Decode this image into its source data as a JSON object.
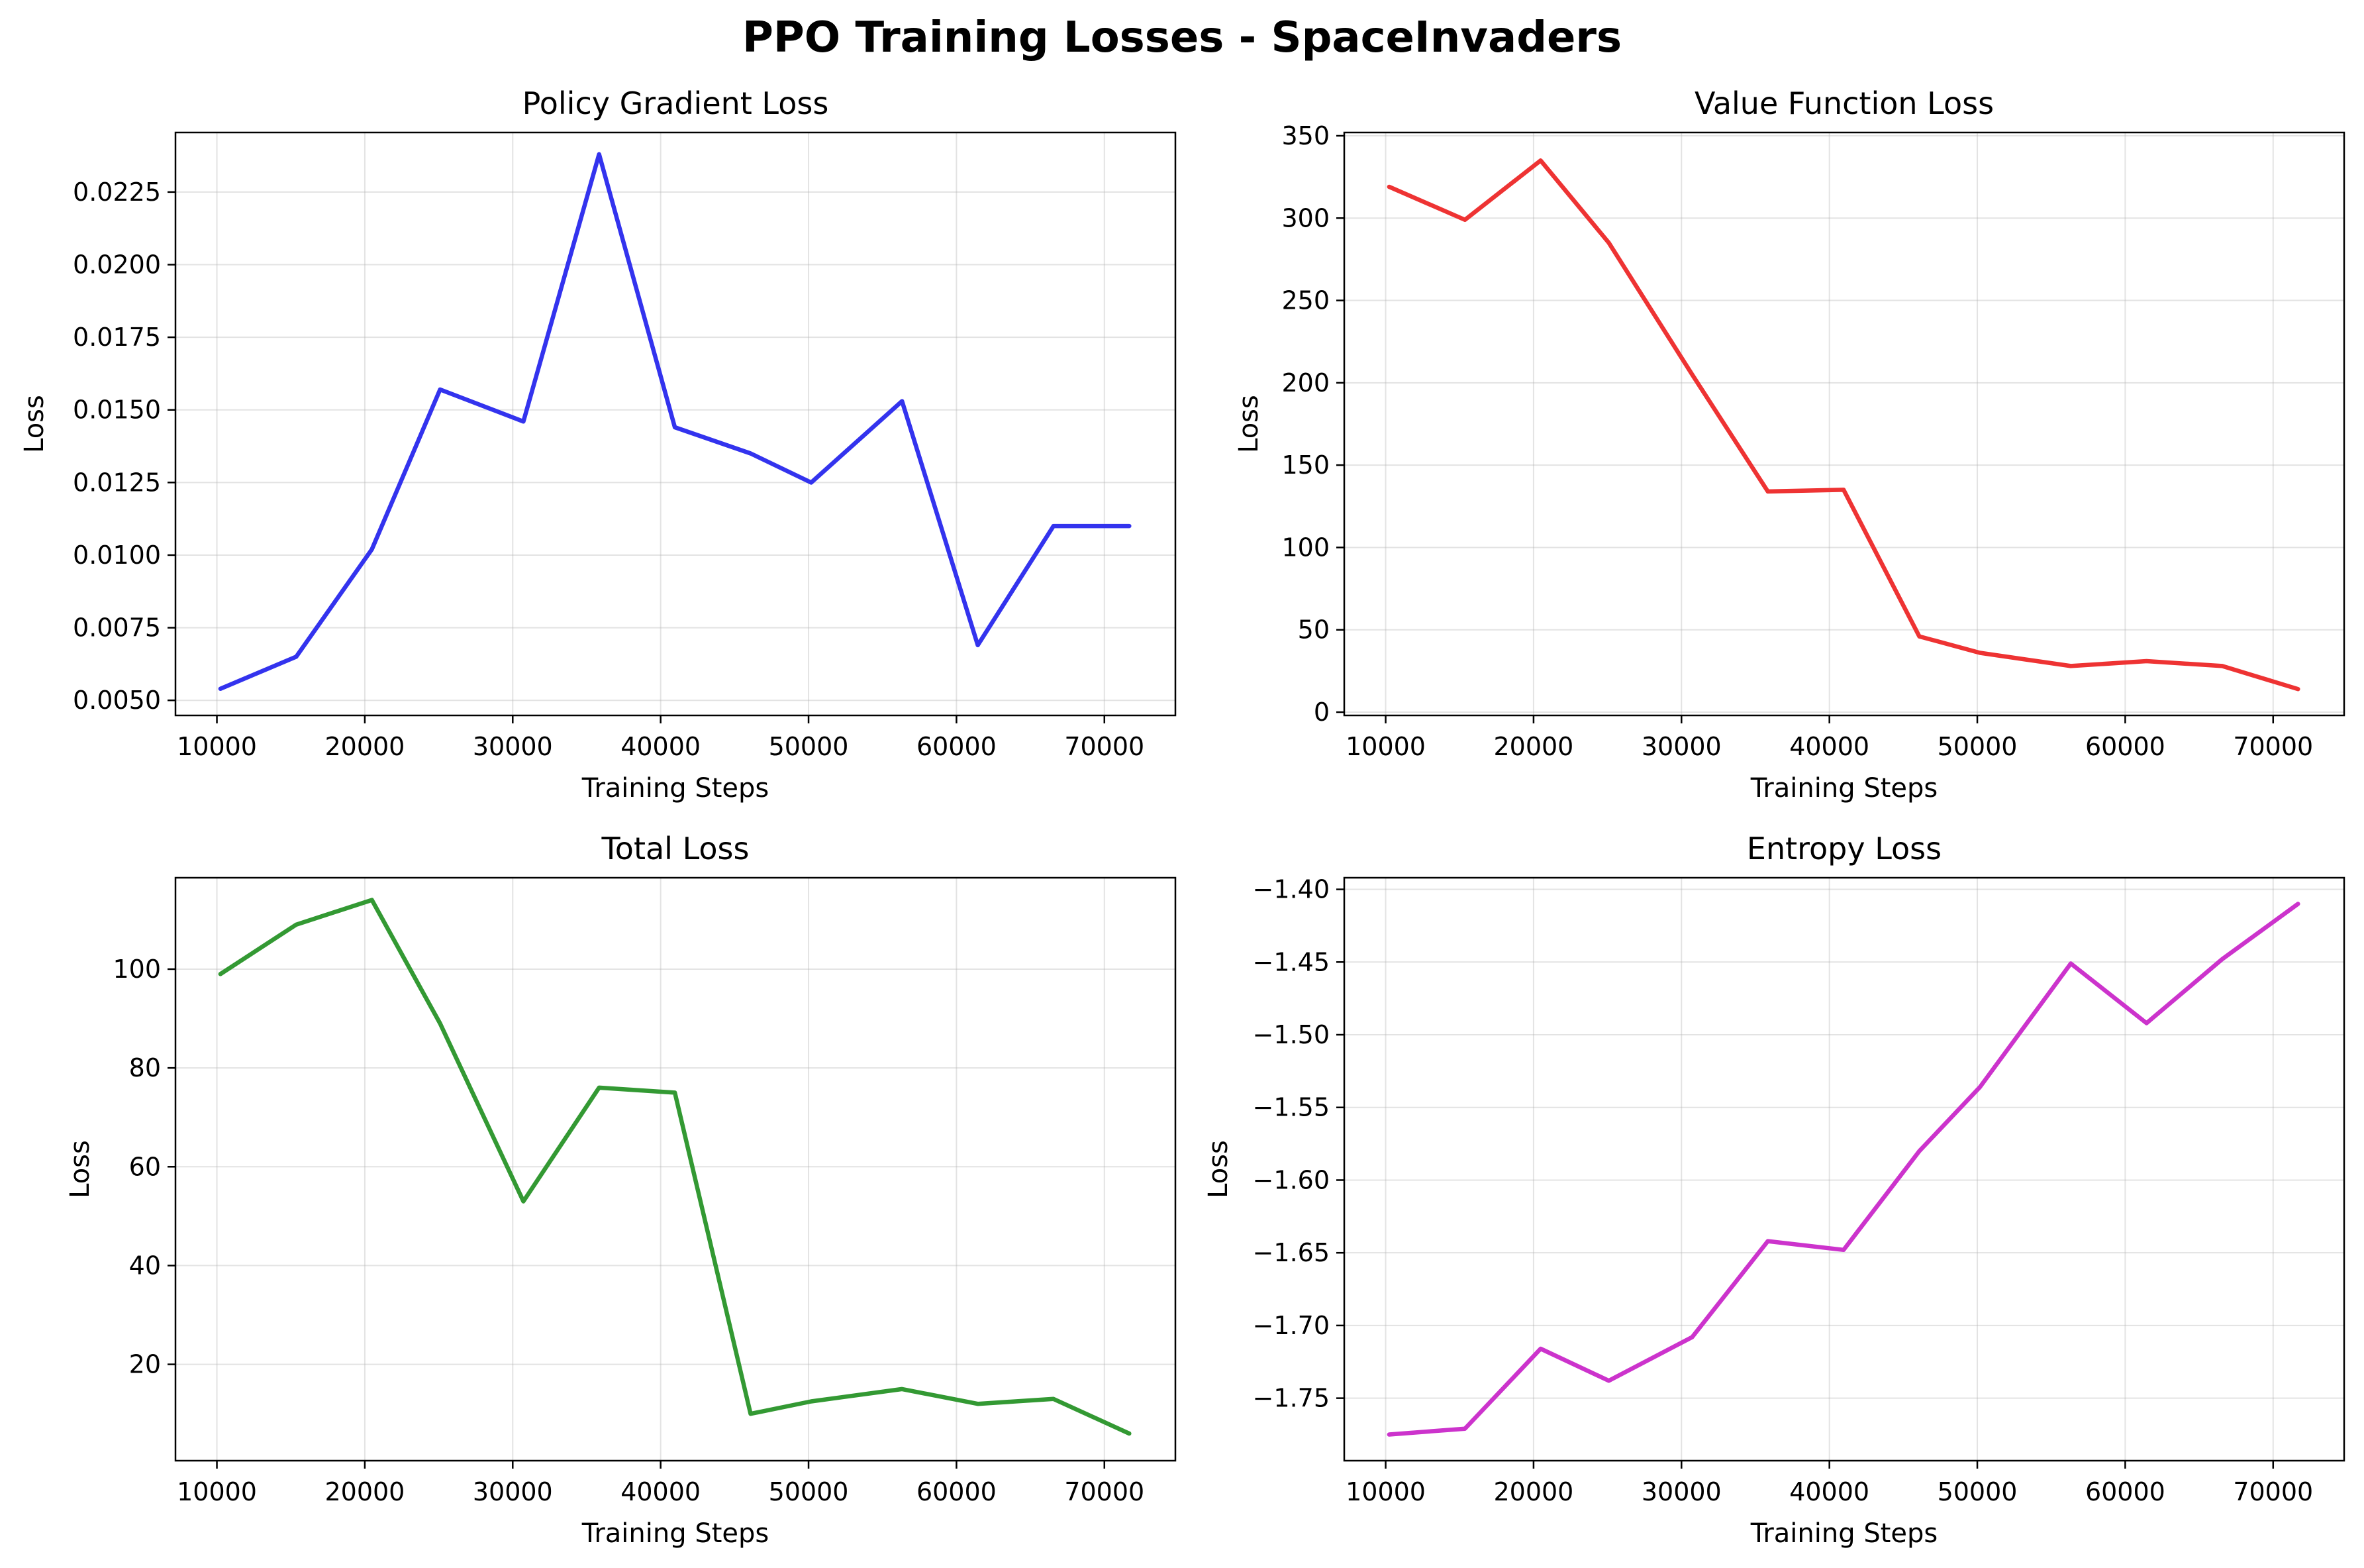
{
  "figure": {
    "suptitle": "PPO Training Losses - SpaceInvaders"
  },
  "chart_data": [
    {
      "type": "line",
      "title": "Policy Gradient Loss",
      "xlabel": "Training Steps",
      "ylabel": "Loss",
      "xlim": [
        7200,
        74800
      ],
      "ylim": [
        0.00448,
        0.02455
      ],
      "xticks": [
        10000,
        20000,
        30000,
        40000,
        50000,
        60000,
        70000
      ],
      "xtick_labels": [
        "10000",
        "20000",
        "30000",
        "40000",
        "50000",
        "60000",
        "70000"
      ],
      "yticks": [
        0.005,
        0.0075,
        0.01,
        0.0125,
        0.015,
        0.0175,
        0.02,
        0.0225
      ],
      "ytick_labels": [
        "0.0050",
        "0.0075",
        "0.0100",
        "0.0125",
        "0.0150",
        "0.0175",
        "0.0200",
        "0.0225"
      ],
      "grid": true,
      "color": "#3333ee",
      "series": [
        {
          "x": [
            10240,
            15360,
            20480,
            25088,
            30720,
            35840,
            40960,
            46080,
            50176,
            56320,
            61440,
            66560,
            71680
          ],
          "y": [
            0.0054,
            0.0065,
            0.0102,
            0.0157,
            0.0146,
            0.0238,
            0.0144,
            0.0135,
            0.0125,
            0.0153,
            0.0069,
            0.011,
            0.011
          ]
        }
      ]
    },
    {
      "type": "line",
      "title": "Value Function Loss",
      "xlabel": "Training Steps",
      "ylabel": "Loss",
      "xlim": [
        7200,
        74800
      ],
      "ylim": [
        -2,
        352
      ],
      "xticks": [
        10000,
        20000,
        30000,
        40000,
        50000,
        60000,
        70000
      ],
      "xtick_labels": [
        "10000",
        "20000",
        "30000",
        "40000",
        "50000",
        "60000",
        "70000"
      ],
      "yticks": [
        0,
        50,
        100,
        150,
        200,
        250,
        300,
        350
      ],
      "ytick_labels": [
        "0",
        "50",
        "100",
        "150",
        "200",
        "250",
        "300",
        "350"
      ],
      "grid": true,
      "color": "#ee3333",
      "series": [
        {
          "x": [
            10240,
            15360,
            20480,
            25088,
            30720,
            35840,
            40960,
            46080,
            50176,
            56320,
            61440,
            66560,
            71680
          ],
          "y": [
            319,
            299,
            335,
            285,
            205,
            134,
            135,
            46,
            36,
            28,
            31,
            28,
            14
          ]
        }
      ]
    },
    {
      "type": "line",
      "title": "Total Loss",
      "xlabel": "Training Steps",
      "ylabel": "Loss",
      "xlim": [
        7200,
        74800
      ],
      "ylim": [
        0.5,
        118.5
      ],
      "xticks": [
        10000,
        20000,
        30000,
        40000,
        50000,
        60000,
        70000
      ],
      "xtick_labels": [
        "10000",
        "20000",
        "30000",
        "40000",
        "50000",
        "60000",
        "70000"
      ],
      "yticks": [
        20,
        40,
        60,
        80,
        100
      ],
      "ytick_labels": [
        "20",
        "40",
        "60",
        "80",
        "100"
      ],
      "grid": true,
      "color": "#339933",
      "series": [
        {
          "x": [
            10240,
            15360,
            20480,
            25088,
            30720,
            35840,
            40960,
            46080,
            50176,
            56320,
            61440,
            66560,
            71680
          ],
          "y": [
            99,
            109,
            114,
            89,
            53,
            76,
            75,
            10,
            12.5,
            15,
            12,
            13,
            6
          ]
        }
      ]
    },
    {
      "type": "line",
      "title": "Entropy Loss",
      "xlabel": "Training Steps",
      "ylabel": "Loss",
      "xlim": [
        7200,
        74800
      ],
      "ylim": [
        -1.793,
        -1.392
      ],
      "xticks": [
        10000,
        20000,
        30000,
        40000,
        50000,
        60000,
        70000
      ],
      "xtick_labels": [
        "10000",
        "20000",
        "30000",
        "40000",
        "50000",
        "60000",
        "70000"
      ],
      "yticks": [
        -1.75,
        -1.7,
        -1.65,
        -1.6,
        -1.55,
        -1.5,
        -1.45,
        -1.4
      ],
      "ytick_labels": [
        "−1.75",
        "−1.70",
        "−1.65",
        "−1.60",
        "−1.55",
        "−1.50",
        "−1.45",
        "−1.40"
      ],
      "grid": true,
      "color": "#cc33cc",
      "series": [
        {
          "x": [
            10240,
            15360,
            20480,
            25088,
            30720,
            35840,
            40960,
            46080,
            50176,
            56320,
            61440,
            66560,
            71680
          ],
          "y": [
            -1.775,
            -1.771,
            -1.716,
            -1.738,
            -1.708,
            -1.642,
            -1.648,
            -1.58,
            -1.536,
            -1.451,
            -1.492,
            -1.448,
            -1.41
          ]
        }
      ]
    }
  ]
}
